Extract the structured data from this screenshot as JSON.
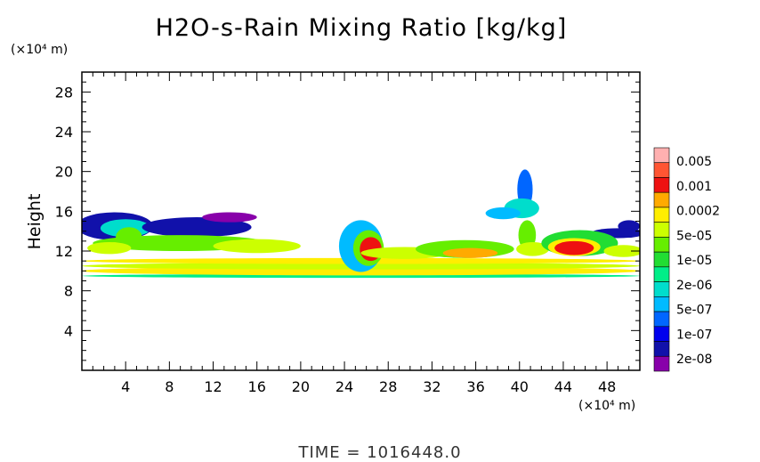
{
  "chart_data": {
    "type": "heatmap",
    "title": "H2O-s-Rain Mixing Ratio [kg/kg]",
    "ylabel": "Height",
    "y_unit": "(×10⁴ m)",
    "x_unit": "(×10⁴ m)",
    "x_range": [
      0,
      51
    ],
    "y_range": [
      0,
      30
    ],
    "x_ticks": [
      "4",
      "8",
      "12",
      "16",
      "20",
      "24",
      "28",
      "32",
      "36",
      "40",
      "44",
      "48"
    ],
    "y_ticks": [
      "4",
      "8",
      "12",
      "16",
      "20",
      "24",
      "28"
    ],
    "x_tick_values": [
      4,
      8,
      12,
      16,
      20,
      24,
      28,
      32,
      36,
      40,
      44,
      48
    ],
    "y_tick_values": [
      4,
      8,
      12,
      16,
      20,
      24,
      28
    ],
    "colorbar": {
      "labels": [
        "0.005",
        "0.001",
        "0.0002",
        "5e-05",
        "1e-05",
        "2e-06",
        "5e-07",
        "1e-07",
        "2e-08"
      ],
      "colors": [
        "#ffb0b0",
        "#ff5533",
        "#ee1111",
        "#ffaa00",
        "#ffee00",
        "#ccff00",
        "#66ee00",
        "#22dd33",
        "#00ee88",
        "#00ddcc",
        "#00bbff",
        "#0066ff",
        "#0000ee",
        "#1111aa",
        "#8800aa"
      ]
    },
    "blobs": [
      {
        "x": 25.5,
        "y": 9.5,
        "rx": 25.5,
        "ry": 0.2,
        "level": 8
      },
      {
        "x": 25.5,
        "y": 10.0,
        "rx": 25.5,
        "ry": 0.45,
        "level": 4
      },
      {
        "x": 25.5,
        "y": 10.5,
        "rx": 25.5,
        "ry": 0.35,
        "level": 5
      },
      {
        "x": 25.5,
        "y": 11.0,
        "rx": 25.5,
        "ry": 0.3,
        "level": 4
      },
      {
        "x": 3.0,
        "y": 14.5,
        "rx": 3.5,
        "ry": 1.4,
        "level": 13
      },
      {
        "x": 4.0,
        "y": 14.3,
        "rx": 2.3,
        "ry": 0.9,
        "level": 9
      },
      {
        "x": 4.3,
        "y": 13.4,
        "rx": 1.2,
        "ry": 1.0,
        "level": 6
      },
      {
        "x": 10.5,
        "y": 14.4,
        "rx": 5.0,
        "ry": 1.0,
        "level": 13
      },
      {
        "x": 13.5,
        "y": 15.4,
        "rx": 2.5,
        "ry": 0.5,
        "level": 14
      },
      {
        "x": 50.0,
        "y": 14.5,
        "rx": 1.0,
        "ry": 0.6,
        "level": 13
      },
      {
        "x": 49.0,
        "y": 13.8,
        "rx": 2.5,
        "ry": 0.5,
        "level": 13
      },
      {
        "x": 9.0,
        "y": 12.8,
        "rx": 8.0,
        "ry": 0.8,
        "level": 6
      },
      {
        "x": 16.0,
        "y": 12.5,
        "rx": 4.0,
        "ry": 0.7,
        "level": 5
      },
      {
        "x": 2.5,
        "y": 12.3,
        "rx": 2.0,
        "ry": 0.6,
        "level": 5
      },
      {
        "x": 25.5,
        "y": 12.5,
        "rx": 2.0,
        "ry": 2.6,
        "level": 10
      },
      {
        "x": 26.2,
        "y": 12.3,
        "rx": 1.4,
        "ry": 1.8,
        "level": 6
      },
      {
        "x": 26.4,
        "y": 12.2,
        "rx": 1.0,
        "ry": 1.2,
        "level": 2
      },
      {
        "x": 29.5,
        "y": 11.8,
        "rx": 4.0,
        "ry": 0.6,
        "level": 5
      },
      {
        "x": 35.0,
        "y": 12.2,
        "rx": 4.5,
        "ry": 0.9,
        "level": 6
      },
      {
        "x": 35.5,
        "y": 11.8,
        "rx": 2.5,
        "ry": 0.5,
        "level": 3
      },
      {
        "x": 40.5,
        "y": 18.2,
        "rx": 0.7,
        "ry": 2.0,
        "level": 11
      },
      {
        "x": 40.2,
        "y": 16.3,
        "rx": 1.6,
        "ry": 1.0,
        "level": 9
      },
      {
        "x": 38.5,
        "y": 15.8,
        "rx": 1.6,
        "ry": 0.6,
        "level": 10
      },
      {
        "x": 40.7,
        "y": 13.6,
        "rx": 0.8,
        "ry": 1.5,
        "level": 6
      },
      {
        "x": 41.2,
        "y": 12.2,
        "rx": 1.5,
        "ry": 0.7,
        "level": 5
      },
      {
        "x": 45.5,
        "y": 12.8,
        "rx": 3.5,
        "ry": 1.3,
        "level": 7
      },
      {
        "x": 45.0,
        "y": 12.4,
        "rx": 2.4,
        "ry": 0.9,
        "level": 4
      },
      {
        "x": 45.0,
        "y": 12.3,
        "rx": 1.8,
        "ry": 0.7,
        "level": 2
      },
      {
        "x": 49.5,
        "y": 12.0,
        "rx": 1.8,
        "ry": 0.6,
        "level": 5
      }
    ]
  },
  "footer": {
    "time_label": "TIME = 1016448.0"
  }
}
